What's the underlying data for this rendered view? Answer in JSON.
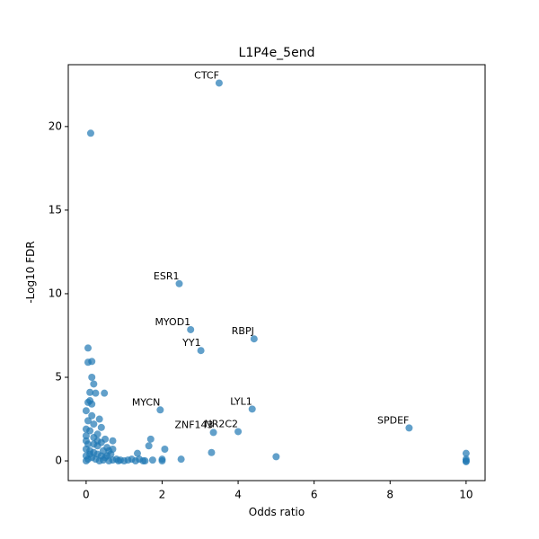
{
  "chart_data": {
    "type": "scatter",
    "title": "L1P4e_5end",
    "x_label": "Odds ratio",
    "y_label": "-Log10 FDR",
    "color": "#1f77b4",
    "grid": false,
    "xlim": [
      -0.47,
      10.5
    ],
    "ylim": [
      -1.18,
      23.7
    ],
    "xticks": [
      0,
      2,
      4,
      6,
      8,
      10
    ],
    "yticks": [
      0,
      5,
      10,
      15,
      20
    ],
    "x": [
      3.5,
      2.45,
      2.75,
      4.42,
      3.02,
      1.95,
      4.37,
      4.0,
      3.35,
      8.5,
      0.12,
      0.05,
      0.05,
      0.15,
      0.15,
      0.2,
      0.1,
      0.25,
      0.48,
      0.05,
      0.1,
      0.15,
      0,
      0.15,
      0.35,
      0.2,
      0.4,
      0,
      0.1,
      0.3,
      0.5,
      0.7,
      1.7,
      1.65,
      2.07,
      0.7,
      0.55,
      0.2,
      0.3,
      0.4,
      1.35,
      3.3,
      5.0,
      10,
      10,
      10,
      10,
      2.0,
      2.0,
      2.5,
      1.75,
      1.4,
      1.5,
      1.2,
      1.1,
      1.0,
      0.9,
      0.8,
      0.6,
      0.5,
      0.4,
      0.3,
      0.2,
      0.1,
      0,
      0,
      0,
      0,
      0,
      0.05,
      0.15,
      0.25,
      0.35,
      0.45,
      0.55,
      0.65,
      0.7,
      0.85,
      1.3,
      1.55,
      0.05,
      0.05,
      0.1,
      0.2,
      0.3,
      0.45,
      0.6
    ],
    "y": [
      22.6,
      10.6,
      7.85,
      7.3,
      6.6,
      3.05,
      3.1,
      1.75,
      1.7,
      1.97,
      19.6,
      6.75,
      5.9,
      5.95,
      5.0,
      4.6,
      4.1,
      4.05,
      4.05,
      3.5,
      3.6,
      3.4,
      3.0,
      2.7,
      2.5,
      2.2,
      2.0,
      1.9,
      1.8,
      1.6,
      1.3,
      1.2,
      1.3,
      0.9,
      0.7,
      0.7,
      0.8,
      1.0,
      0.9,
      1.1,
      0.45,
      0.5,
      0.25,
      0.45,
      0.1,
      0,
      -0.05,
      0.1,
      0.0,
      0.1,
      0.05,
      0.1,
      0.0,
      0.1,
      0.05,
      0.0,
      0.05,
      0.1,
      0.0,
      0.2,
      0.3,
      0.4,
      0.5,
      0.6,
      0.7,
      1.2,
      1.5,
      0.3,
      0,
      0.1,
      0.2,
      0.1,
      0,
      0.05,
      0.3,
      0.4,
      0.05,
      0,
      0,
      0,
      2.4,
      1.0,
      0.4,
      1.4,
      1.2,
      0.6,
      0.6
    ],
    "point_labels": [
      "CTCF",
      "ESR1",
      "MYOD1",
      "RBPJ",
      "YY1",
      "MYCN",
      "LYL1",
      "NR2C2",
      "ZNF143",
      "SPDEF",
      null,
      null,
      null,
      null,
      null,
      null,
      null,
      null,
      null,
      null,
      null,
      null,
      null,
      null,
      null,
      null,
      null,
      null,
      null,
      null,
      null,
      null,
      null,
      null,
      null,
      null,
      null,
      null,
      null,
      null,
      null,
      null,
      null,
      null,
      null,
      null,
      null,
      null,
      null,
      null,
      null,
      null,
      null,
      null,
      null,
      null,
      null,
      null,
      null,
      null,
      null,
      null,
      null,
      null,
      null,
      null,
      null,
      null,
      null,
      null,
      null,
      null,
      null,
      null,
      null,
      null,
      null,
      null,
      null,
      null,
      null,
      null,
      null,
      null,
      null,
      null,
      null
    ]
  }
}
